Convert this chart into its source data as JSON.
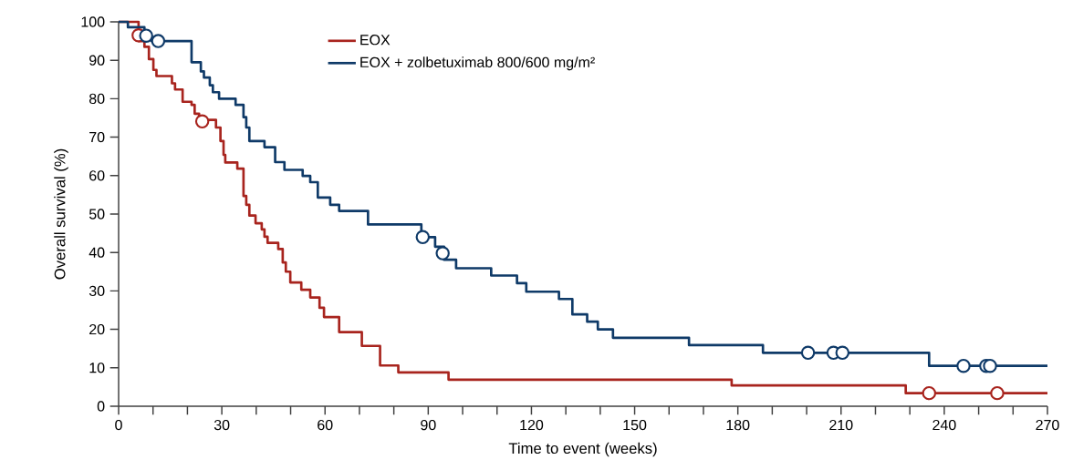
{
  "chart_data": {
    "type": "step",
    "xlabel": "Time to event (weeks)",
    "ylabel": "Overall survival (%)",
    "xlim": [
      0,
      270
    ],
    "ylim": [
      0,
      100
    ],
    "xticks": [
      0,
      {
        "value": 10,
        "label": null
      },
      {
        "value": 20,
        "label": null
      },
      30,
      {
        "value": 40,
        "label": null
      },
      {
        "value": 50,
        "label": null
      },
      60,
      {
        "value": 70,
        "label": null
      },
      {
        "value": 80,
        "label": null
      },
      90,
      {
        "value": 100,
        "label": null
      },
      {
        "value": 110,
        "label": null
      },
      120,
      {
        "value": 130,
        "label": null
      },
      {
        "value": 140,
        "label": null
      },
      150,
      {
        "value": 160,
        "label": null
      },
      {
        "value": 170,
        "label": null
      },
      180,
      {
        "value": 190,
        "label": null
      },
      {
        "value": 200,
        "label": null
      },
      210,
      {
        "value": 220,
        "label": null
      },
      {
        "value": 230,
        "label": null
      },
      240,
      {
        "value": 250,
        "label": null
      },
      {
        "value": 260,
        "label": null
      },
      270
    ],
    "yticks": [
      0,
      10,
      20,
      30,
      40,
      50,
      60,
      70,
      80,
      90,
      100
    ],
    "grid": false,
    "legend": "top",
    "series": [
      {
        "name": "EOX",
        "color": "#a8241e",
        "x": [
          0,
          5.8,
          7.5,
          8.8,
          10.1,
          11.0,
          15.5,
          16.4,
          18.6,
          21.2,
          22.1,
          23.4,
          28.3,
          29.6,
          30.5,
          31.0,
          34.5,
          36.3,
          37.1,
          38.0,
          39.8,
          41.6,
          42.4,
          43.3,
          46.4,
          47.7,
          48.6,
          49.9,
          53.1,
          55.7,
          58.4,
          59.7,
          64.1,
          70.7,
          76.0,
          81.3,
          95.9,
          178.2,
          228.8,
          270
        ],
        "values": [
          100,
          95.0,
          93.5,
          90.3,
          87.5,
          85.9,
          84.0,
          82.4,
          79.2,
          78.4,
          76.1,
          74.5,
          72.5,
          69.0,
          65.4,
          63.4,
          61.8,
          54.7,
          52.4,
          49.6,
          47.6,
          46.0,
          44.1,
          42.5,
          40.9,
          37.4,
          35.0,
          32.2,
          30.3,
          28.3,
          25.6,
          23.2,
          19.3,
          15.7,
          10.6,
          8.8,
          6.9,
          5.4,
          3.4,
          3.4
        ]
      },
      {
        "name": "EOX + zolbetuximab 800/600 mg/m²",
        "color": "#0f3a68",
        "x": [
          0,
          2.7,
          7.5,
          9.5,
          21.2,
          23.9,
          24.8,
          26.5,
          27.4,
          29.2,
          34.0,
          36.3,
          37.1,
          38.0,
          42.4,
          45.5,
          48.2,
          53.5,
          55.7,
          57.9,
          61.5,
          64.1,
          72.5,
          88.0,
          92.0,
          94.6,
          98.1,
          108.3,
          115.8,
          118.5,
          128.0,
          131.9,
          136.2,
          139.3,
          143.7,
          165.8,
          187.3,
          235.6,
          270
        ],
        "values": [
          100,
          98.6,
          96.4,
          95.0,
          89.5,
          87.1,
          85.5,
          83.5,
          81.7,
          80.0,
          78.4,
          75.2,
          72.5,
          69.0,
          67.4,
          63.5,
          61.5,
          59.9,
          58.3,
          54.3,
          52.4,
          50.8,
          47.3,
          44.0,
          41.5,
          38.1,
          35.9,
          34.0,
          32.0,
          29.8,
          27.9,
          23.9,
          22.0,
          20.0,
          17.8,
          15.9,
          13.9,
          10.5,
          10.5
        ]
      },
      {
        "type": "scatter",
        "marker": "circle",
        "color": "#a8241e",
        "x": [
          5.8,
          24.3,
          235.6,
          255.4
        ],
        "values": [
          96.5,
          74.1,
          3.4,
          3.4
        ]
      },
      {
        "type": "scatter",
        "marker": "circle",
        "color": "#0f3a68",
        "x": [
          8.0,
          11.5,
          88.4,
          94.2,
          200.4,
          207.8,
          210.4,
          245.6,
          252.2,
          253.3
        ],
        "values": [
          96.4,
          95.0,
          44.0,
          39.8,
          13.9,
          13.9,
          13.9,
          10.5,
          10.5,
          10.5
        ]
      }
    ]
  }
}
